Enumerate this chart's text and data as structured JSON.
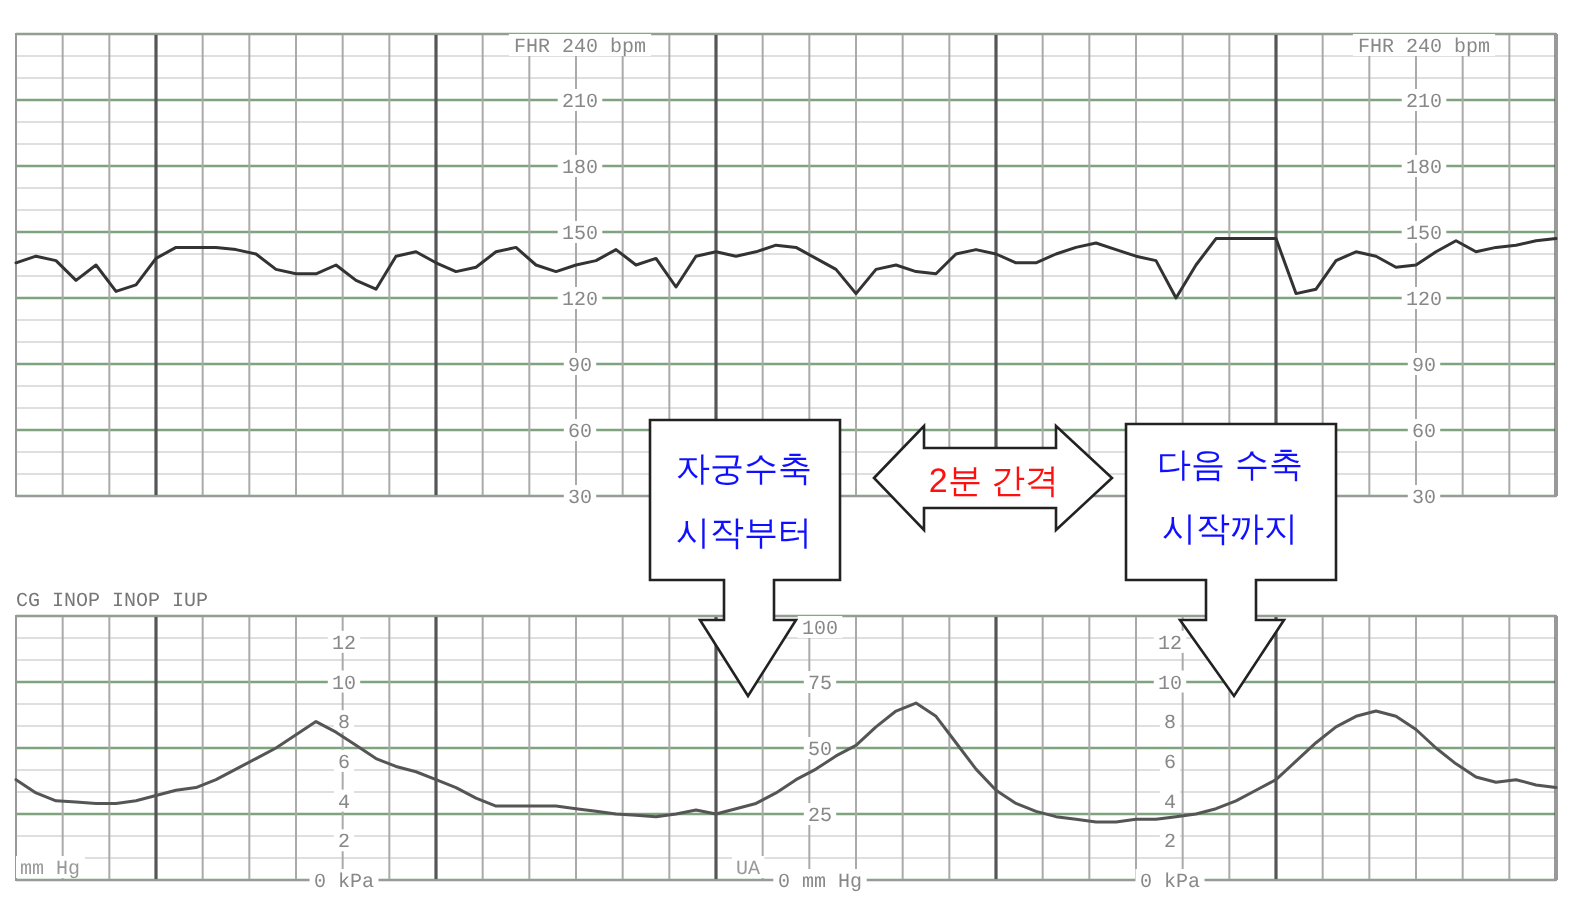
{
  "chart_data": [
    {
      "type": "line",
      "categories": [
        null,
        null,
        null,
        null,
        null,
        null,
        null,
        null,
        null,
        null,
        null,
        null,
        null,
        null,
        null,
        null,
        null,
        null,
        null,
        null,
        null,
        null,
        null,
        null,
        null,
        null,
        null,
        null,
        null,
        null,
        null,
        null,
        null,
        null,
        null,
        null,
        null,
        null,
        null,
        null,
        null,
        null,
        null,
        null,
        null,
        null,
        null,
        null,
        null,
        null,
        null,
        null,
        null,
        null,
        null,
        null,
        null,
        null,
        null,
        null,
        null,
        null,
        null,
        null,
        null,
        null,
        null,
        null,
        null,
        null,
        null,
        null,
        null,
        null,
        null,
        null,
        null,
        null
      ],
      "series": [
        {
          "color": "#333333",
          "values": [
            136,
            139,
            137,
            128,
            135,
            123,
            126,
            138,
            143,
            143,
            143,
            142,
            140,
            133,
            131,
            131,
            135,
            128,
            124,
            139,
            141,
            136,
            132,
            134,
            141,
            143,
            135,
            132,
            135,
            137,
            142,
            135,
            138,
            125,
            139,
            141,
            139,
            141,
            144,
            143,
            138,
            133,
            122,
            133,
            135,
            132,
            131,
            140,
            142,
            140,
            136,
            136,
            140,
            143,
            145,
            142,
            139,
            137,
            120,
            135,
            147,
            147,
            147,
            147,
            122,
            124,
            137,
            141,
            139,
            134,
            135,
            141,
            146,
            141,
            143,
            144,
            146,
            147
          ]
        }
      ],
      "ylim": [
        30,
        240
      ],
      "yticks": [
        30,
        60,
        90,
        120,
        150,
        180,
        210,
        {
          "value": 240,
          "label": "FHR 240 bpm"
        }
      ],
      "y2lim": [
        30,
        240
      ],
      "y2ticks": [
        30,
        60,
        90,
        120,
        150,
        180,
        210,
        {
          "value": 240,
          "label": "FHR 240 bpm"
        }
      ],
      "grid": true,
      "annotations": [
        "자궁수축",
        "시작부터",
        "2분 간격",
        "다음 수축",
        "시작까지"
      ]
    },
    {
      "type": "line",
      "categories": [
        null,
        null,
        null,
        null,
        null,
        null,
        null,
        null,
        null,
        null,
        null,
        null,
        null,
        null,
        null,
        null,
        null,
        null,
        null,
        null,
        null,
        null,
        null,
        null,
        null,
        null,
        null,
        null,
        null,
        null,
        null,
        null,
        null,
        null,
        null,
        null,
        null,
        null,
        null,
        null,
        null,
        null,
        null,
        null,
        null,
        null,
        null,
        null,
        null,
        null,
        null,
        null,
        null,
        null,
        null,
        null,
        null,
        null,
        null,
        null,
        null,
        null,
        null,
        null,
        null,
        null,
        null,
        null,
        null,
        null,
        null,
        null,
        null,
        null,
        null,
        null,
        null,
        null
      ],
      "series": [
        {
          "color": "#555555",
          "values": [
            38,
            33,
            30,
            29.5,
            29,
            29,
            30,
            32,
            34,
            35,
            38,
            42,
            46,
            50,
            55,
            60,
            56,
            51,
            46,
            43,
            41,
            38,
            35,
            31,
            28,
            28,
            28,
            28,
            27,
            26,
            25,
            24.5,
            24,
            25,
            26.5,
            25,
            27,
            29,
            33,
            38,
            42,
            47,
            51,
            58,
            64,
            67,
            62,
            52,
            42,
            34,
            29,
            26,
            24,
            23,
            22,
            22,
            23,
            23,
            24,
            25,
            27,
            30,
            34,
            38,
            45,
            52,
            58,
            62,
            64,
            62,
            57,
            50,
            44,
            39,
            37,
            38,
            36,
            35
          ]
        }
      ],
      "ylim": [
        0,
        100
      ],
      "yticks": [
        {
          "value": 0,
          "label": "0 mm Hg"
        },
        25,
        50,
        75,
        100
      ],
      "y2lim": [
        0,
        13.3
      ],
      "y2ticks": [
        {
          "value": 0,
          "label": "0 kPa"
        },
        2,
        4,
        6,
        8,
        10,
        12
      ],
      "y3lim": [
        0,
        13.3
      ],
      "y3ticks": [
        {
          "value": 0,
          "label": "0 kPa"
        },
        2,
        4,
        6,
        8,
        10,
        12
      ],
      "grid": true,
      "annotations": [
        "CG INOP INOP IUP",
        "mm Hg",
        "UA"
      ]
    }
  ]
}
